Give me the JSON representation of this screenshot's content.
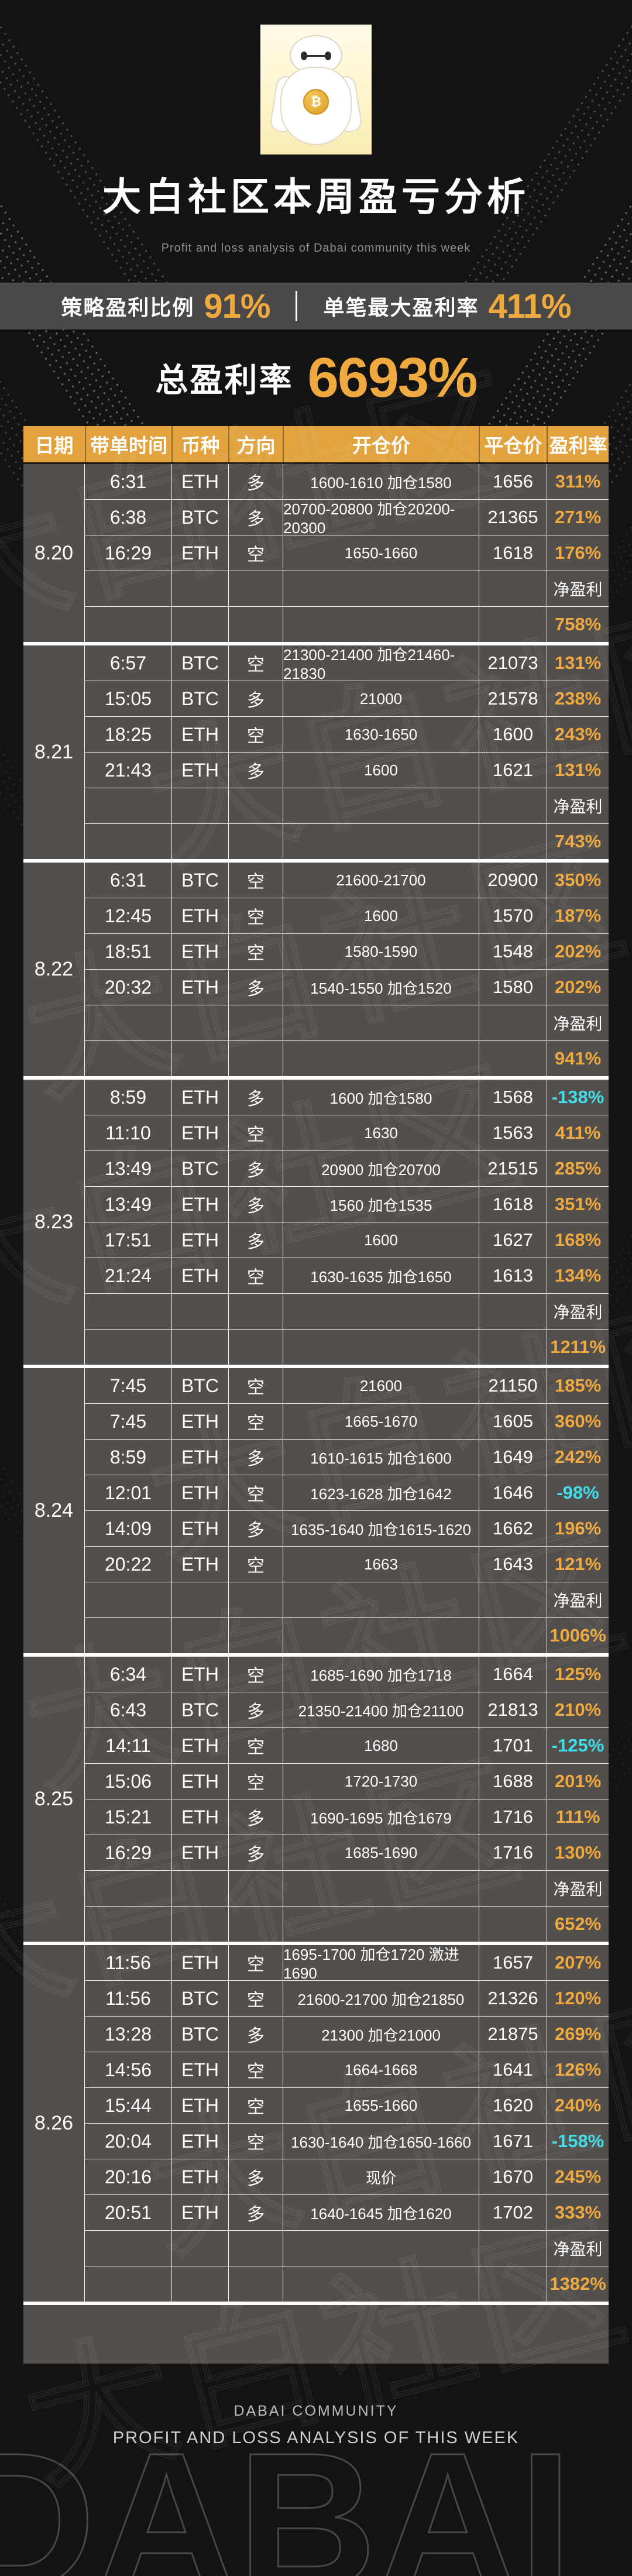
{
  "page": {
    "title": "大白社区本周盈亏分析",
    "subtitle": "Profit and loss analysis of Dabai community this week"
  },
  "logo": {
    "coin_symbol": "₿"
  },
  "stats": {
    "strategy_label": "策略盈利比例",
    "strategy_value": "91%",
    "max_single_label": "单笔最大盈利率",
    "max_single_value": "411%",
    "total_label": "总盈利率",
    "total_value": "6693%"
  },
  "colors": {
    "gold_accent": "#efa93e",
    "header_gold": "#e2a33f",
    "negative_cyan": "#3fdee8",
    "panel_gray": "#524f4d",
    "band_gray": "#4b4947"
  },
  "table": {
    "columns": [
      "日期",
      "带单时间",
      "币种",
      "方向",
      "开仓价",
      "平仓价",
      "盈利率"
    ],
    "net_label": "净盈利",
    "groups": [
      {
        "date": "8.20",
        "net": "758%",
        "rows": [
          [
            "6:31",
            "ETH",
            "多",
            "1600-1610 加仓1580",
            "1656",
            "311%"
          ],
          [
            "6:38",
            "BTC",
            "多",
            "20700-20800 加仓20200-20300",
            "21365",
            "271%"
          ],
          [
            "16:29",
            "ETH",
            "空",
            "1650-1660",
            "1618",
            "176%"
          ]
        ]
      },
      {
        "date": "8.21",
        "net": "743%",
        "rows": [
          [
            "6:57",
            "BTC",
            "空",
            "21300-21400 加仓21460-21830",
            "21073",
            "131%"
          ],
          [
            "15:05",
            "BTC",
            "多",
            "21000",
            "21578",
            "238%"
          ],
          [
            "18:25",
            "ETH",
            "空",
            "1630-1650",
            "1600",
            "243%"
          ],
          [
            "21:43",
            "ETH",
            "多",
            "1600",
            "1621",
            "131%"
          ]
        ]
      },
      {
        "date": "8.22",
        "net": "941%",
        "rows": [
          [
            "6:31",
            "BTC",
            "空",
            "21600-21700",
            "20900",
            "350%"
          ],
          [
            "12:45",
            "ETH",
            "空",
            "1600",
            "1570",
            "187%"
          ],
          [
            "18:51",
            "ETH",
            "空",
            "1580-1590",
            "1548",
            "202%"
          ],
          [
            "20:32",
            "ETH",
            "多",
            "1540-1550 加仓1520",
            "1580",
            "202%"
          ]
        ]
      },
      {
        "date": "8.23",
        "net": "1211%",
        "rows": [
          [
            "8:59",
            "ETH",
            "多",
            "1600 加仓1580",
            "1568",
            "-138%"
          ],
          [
            "11:10",
            "ETH",
            "空",
            "1630",
            "1563",
            "411%"
          ],
          [
            "13:49",
            "BTC",
            "多",
            "20900 加仓20700",
            "21515",
            "285%"
          ],
          [
            "13:49",
            "ETH",
            "多",
            "1560 加仓1535",
            "1618",
            "351%"
          ],
          [
            "17:51",
            "ETH",
            "多",
            "1600",
            "1627",
            "168%"
          ],
          [
            "21:24",
            "ETH",
            "空",
            "1630-1635 加仓1650",
            "1613",
            "134%"
          ]
        ]
      },
      {
        "date": "8.24",
        "net": "1006%",
        "rows": [
          [
            "7:45",
            "BTC",
            "空",
            "21600",
            "21150",
            "185%"
          ],
          [
            "7:45",
            "ETH",
            "空",
            "1665-1670",
            "1605",
            "360%"
          ],
          [
            "8:59",
            "ETH",
            "多",
            "1610-1615 加仓1600",
            "1649",
            "242%"
          ],
          [
            "12:01",
            "ETH",
            "空",
            "1623-1628 加仓1642",
            "1646",
            "-98%"
          ],
          [
            "14:09",
            "ETH",
            "多",
            "1635-1640 加仓1615-1620",
            "1662",
            "196%"
          ],
          [
            "20:22",
            "ETH",
            "空",
            "1663",
            "1643",
            "121%"
          ]
        ]
      },
      {
        "date": "8.25",
        "net": "652%",
        "rows": [
          [
            "6:34",
            "ETH",
            "空",
            "1685-1690 加仓1718",
            "1664",
            "125%"
          ],
          [
            "6:43",
            "BTC",
            "多",
            "21350-21400 加仓21100",
            "21813",
            "210%"
          ],
          [
            "14:11",
            "ETH",
            "空",
            "1680",
            "1701",
            "-125%"
          ],
          [
            "15:06",
            "ETH",
            "空",
            "1720-1730",
            "1688",
            "201%"
          ],
          [
            "15:21",
            "ETH",
            "多",
            "1690-1695 加仓1679",
            "1716",
            "111%"
          ],
          [
            "16:29",
            "ETH",
            "多",
            "1685-1690",
            "1716",
            "130%"
          ]
        ]
      },
      {
        "date": "8.26",
        "net": "1382%",
        "rows": [
          [
            "11:56",
            "ETH",
            "空",
            "1695-1700 加仓1720 激进1690",
            "1657",
            "207%"
          ],
          [
            "11:56",
            "BTC",
            "空",
            "21600-21700 加仓21850",
            "21326",
            "120%"
          ],
          [
            "13:28",
            "BTC",
            "多",
            "21300 加仓21000",
            "21875",
            "269%"
          ],
          [
            "14:56",
            "ETH",
            "空",
            "1664-1668",
            "1641",
            "126%"
          ],
          [
            "15:44",
            "ETH",
            "空",
            "1655-1660",
            "1620",
            "240%"
          ],
          [
            "20:04",
            "ETH",
            "空",
            "1630-1640 加仓1650-1660",
            "1671",
            "-158%"
          ],
          [
            "20:16",
            "ETH",
            "多",
            "现价",
            "1670",
            "245%"
          ],
          [
            "20:51",
            "ETH",
            "多",
            "1640-1645 加仓1620",
            "1702",
            "333%"
          ]
        ]
      }
    ]
  },
  "watermark": {
    "cn": "大白社区",
    "giant": "DABAI DABAI"
  },
  "footer": {
    "line1": "DABAI COMMUNITY",
    "line2": "PROFIT AND LOSS ANALYSIS OF THIS WEEK"
  }
}
